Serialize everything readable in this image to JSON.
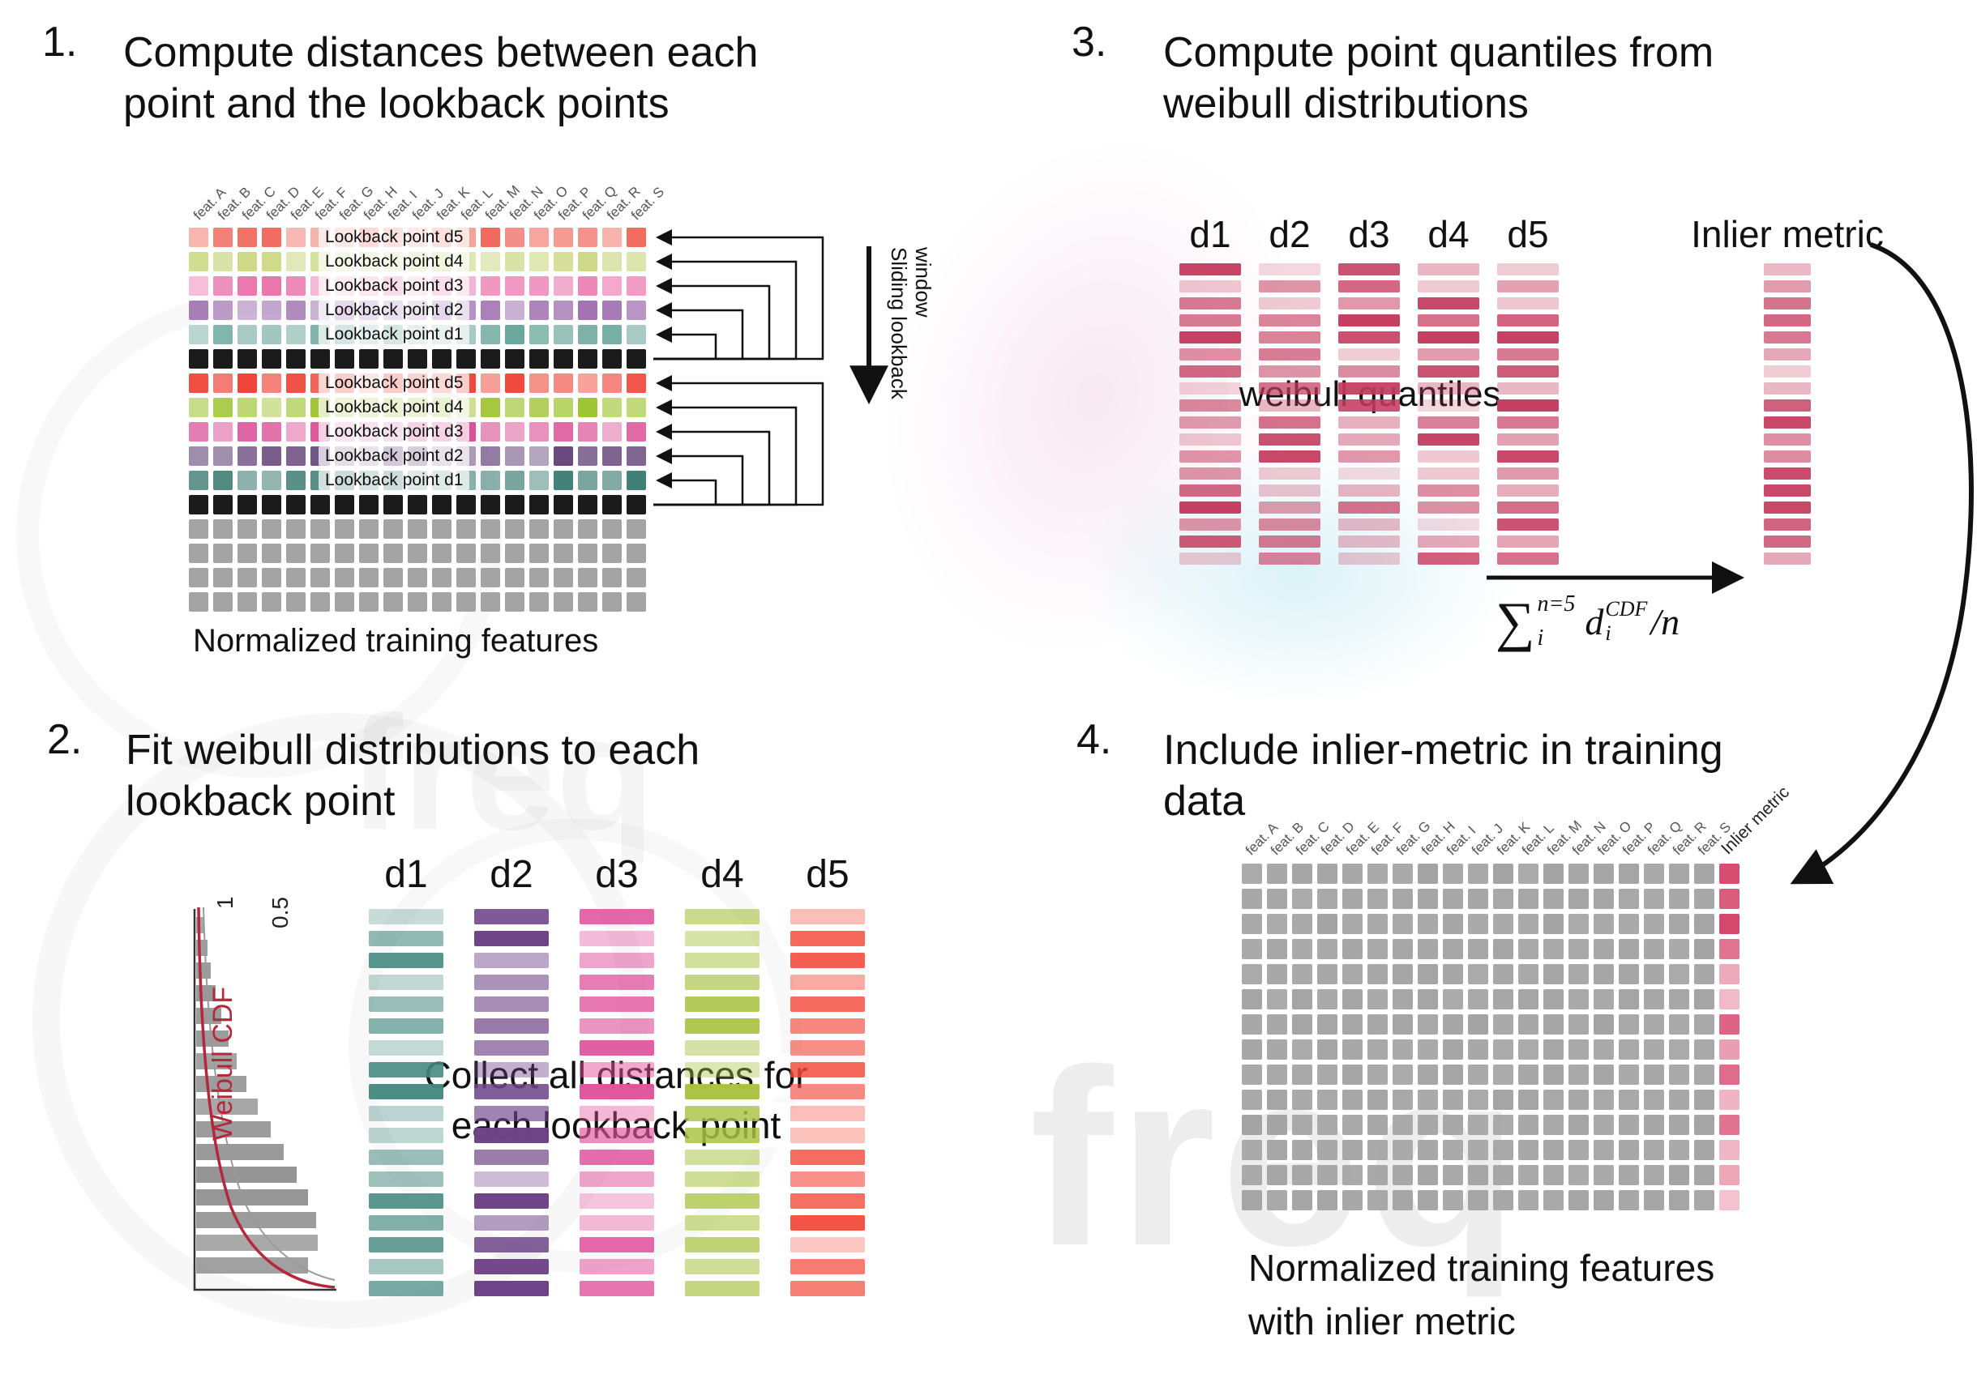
{
  "watermark_text": "freq",
  "feature_headers": [
    "feat. A",
    "feat. B",
    "feat. C",
    "feat. D",
    "feat. E",
    "feat. F",
    "feat. G",
    "feat. H",
    "feat. I",
    "feat. J",
    "feat. K",
    "feat. L",
    "feat. M",
    "feat. N",
    "feat. O",
    "feat. P",
    "feat. Q",
    "feat. R",
    "feat. S"
  ],
  "panel1": {
    "number": "1.",
    "title_lines": [
      "Compute distances between each",
      "point and the lookback points"
    ],
    "row_groups": [
      {
        "rows": [
          {
            "label": "Lookback point d5",
            "color": "#f06a5f"
          },
          {
            "label": "Lookback point d4",
            "color": "#ccd985"
          },
          {
            "label": "Lookback point d3",
            "color": "#ea74ad"
          },
          {
            "label": "Lookback point d2",
            "color": "#a173b1"
          },
          {
            "label": "Lookback point d1",
            "color": "#67a59a"
          }
        ]
      },
      {
        "rows": [
          {
            "label": "Lookback point d5",
            "color": "#f04136"
          },
          {
            "label": "Lookback point d4",
            "color": "#9fc432"
          },
          {
            "label": "Lookback point d3",
            "color": "#da4d95"
          },
          {
            "label": "Lookback point d2",
            "color": "#5c3a74"
          },
          {
            "label": "Lookback point d1",
            "color": "#3a7a71"
          }
        ]
      }
    ],
    "current_row_color": "#1b1b1b",
    "future_row_color": "#a4a4a4",
    "future_rows": 4,
    "sliding_label": "Sliding lookback window",
    "caption": "Normalized training features"
  },
  "panel2": {
    "number": "2.",
    "title_lines": [
      "Fit weibull distributions to each",
      "lookback point"
    ],
    "weibull_plot": {
      "cdf_label": "Weibull CDF",
      "tick_1": "1",
      "tick_05": "0.5",
      "cdf_color": "#b5283c"
    },
    "columns": [
      {
        "label": "d1",
        "color": "#45897f"
      },
      {
        "label": "d2",
        "color": "#6e4387"
      },
      {
        "label": "d3",
        "color": "#e1559d"
      },
      {
        "label": "d4",
        "color": "#a9c343"
      },
      {
        "label": "d5",
        "color": "#f34b3c"
      }
    ],
    "overlay_lines": [
      "Collect all distances for",
      "each lookback point"
    ]
  },
  "panel3": {
    "number": "3.",
    "title_lines": [
      "Compute point quantiles from",
      "weibull distributions"
    ],
    "columns": [
      {
        "label": "d1"
      },
      {
        "label": "d2"
      },
      {
        "label": "d3"
      },
      {
        "label": "d4"
      },
      {
        "label": "d5"
      }
    ],
    "bar_color": "#c43a5e",
    "overlay": "weibull quantiles",
    "inlier_label": "Inlier metric",
    "formula": {
      "sum_symbol": "∑",
      "upper": "n=5",
      "lower": "i",
      "term": "d",
      "term_sup": "CDF",
      "term_sub": "i",
      "divisor": "/n"
    }
  },
  "panel4": {
    "number": "4.",
    "title_lines": [
      "Include inlier-metric in training",
      "data"
    ],
    "inlier_header": "Inlier metric",
    "cell_color": "#a4a4a4",
    "inlier_color": "#d6456b",
    "rows": 14,
    "caption_lines": [
      "Normalized training features",
      "with inlier metric"
    ]
  }
}
